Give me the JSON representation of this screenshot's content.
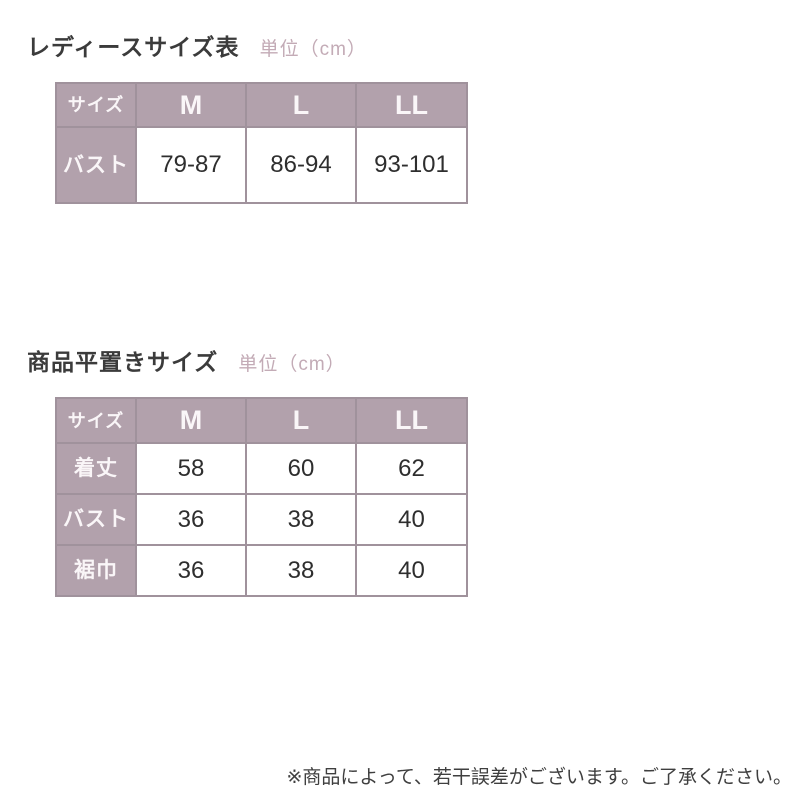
{
  "colors": {
    "background": "#ffffff",
    "table_fill": "#b2a1ac",
    "table_grid": "#a0929c",
    "header_text": "#faf6f8",
    "value_text": "#2e2e2e",
    "title_text": "#3b3b3b",
    "unit_text": "#c3abb6",
    "footnote_text": "#3f3f3f"
  },
  "section1": {
    "title": "レディースサイズ表",
    "unit_label": "単位（cm）",
    "table": {
      "header": [
        "サイズ",
        "M",
        "L",
        "LL"
      ],
      "rows": [
        {
          "label": "バスト",
          "values": [
            "79-87",
            "86-94",
            "93-101"
          ]
        }
      ]
    }
  },
  "section2": {
    "title": "商品平置きサイズ",
    "unit_label": "単位（cm）",
    "table": {
      "header": [
        "サイズ",
        "M",
        "L",
        "LL"
      ],
      "rows": [
        {
          "label": "着丈",
          "values": [
            "58",
            "60",
            "62"
          ]
        },
        {
          "label": "バスト",
          "values": [
            "36",
            "38",
            "40"
          ]
        },
        {
          "label": "裾巾",
          "values": [
            "36",
            "38",
            "40"
          ]
        }
      ]
    }
  },
  "footnote": "※商品によって、若干誤差がございます。ご了承ください。"
}
